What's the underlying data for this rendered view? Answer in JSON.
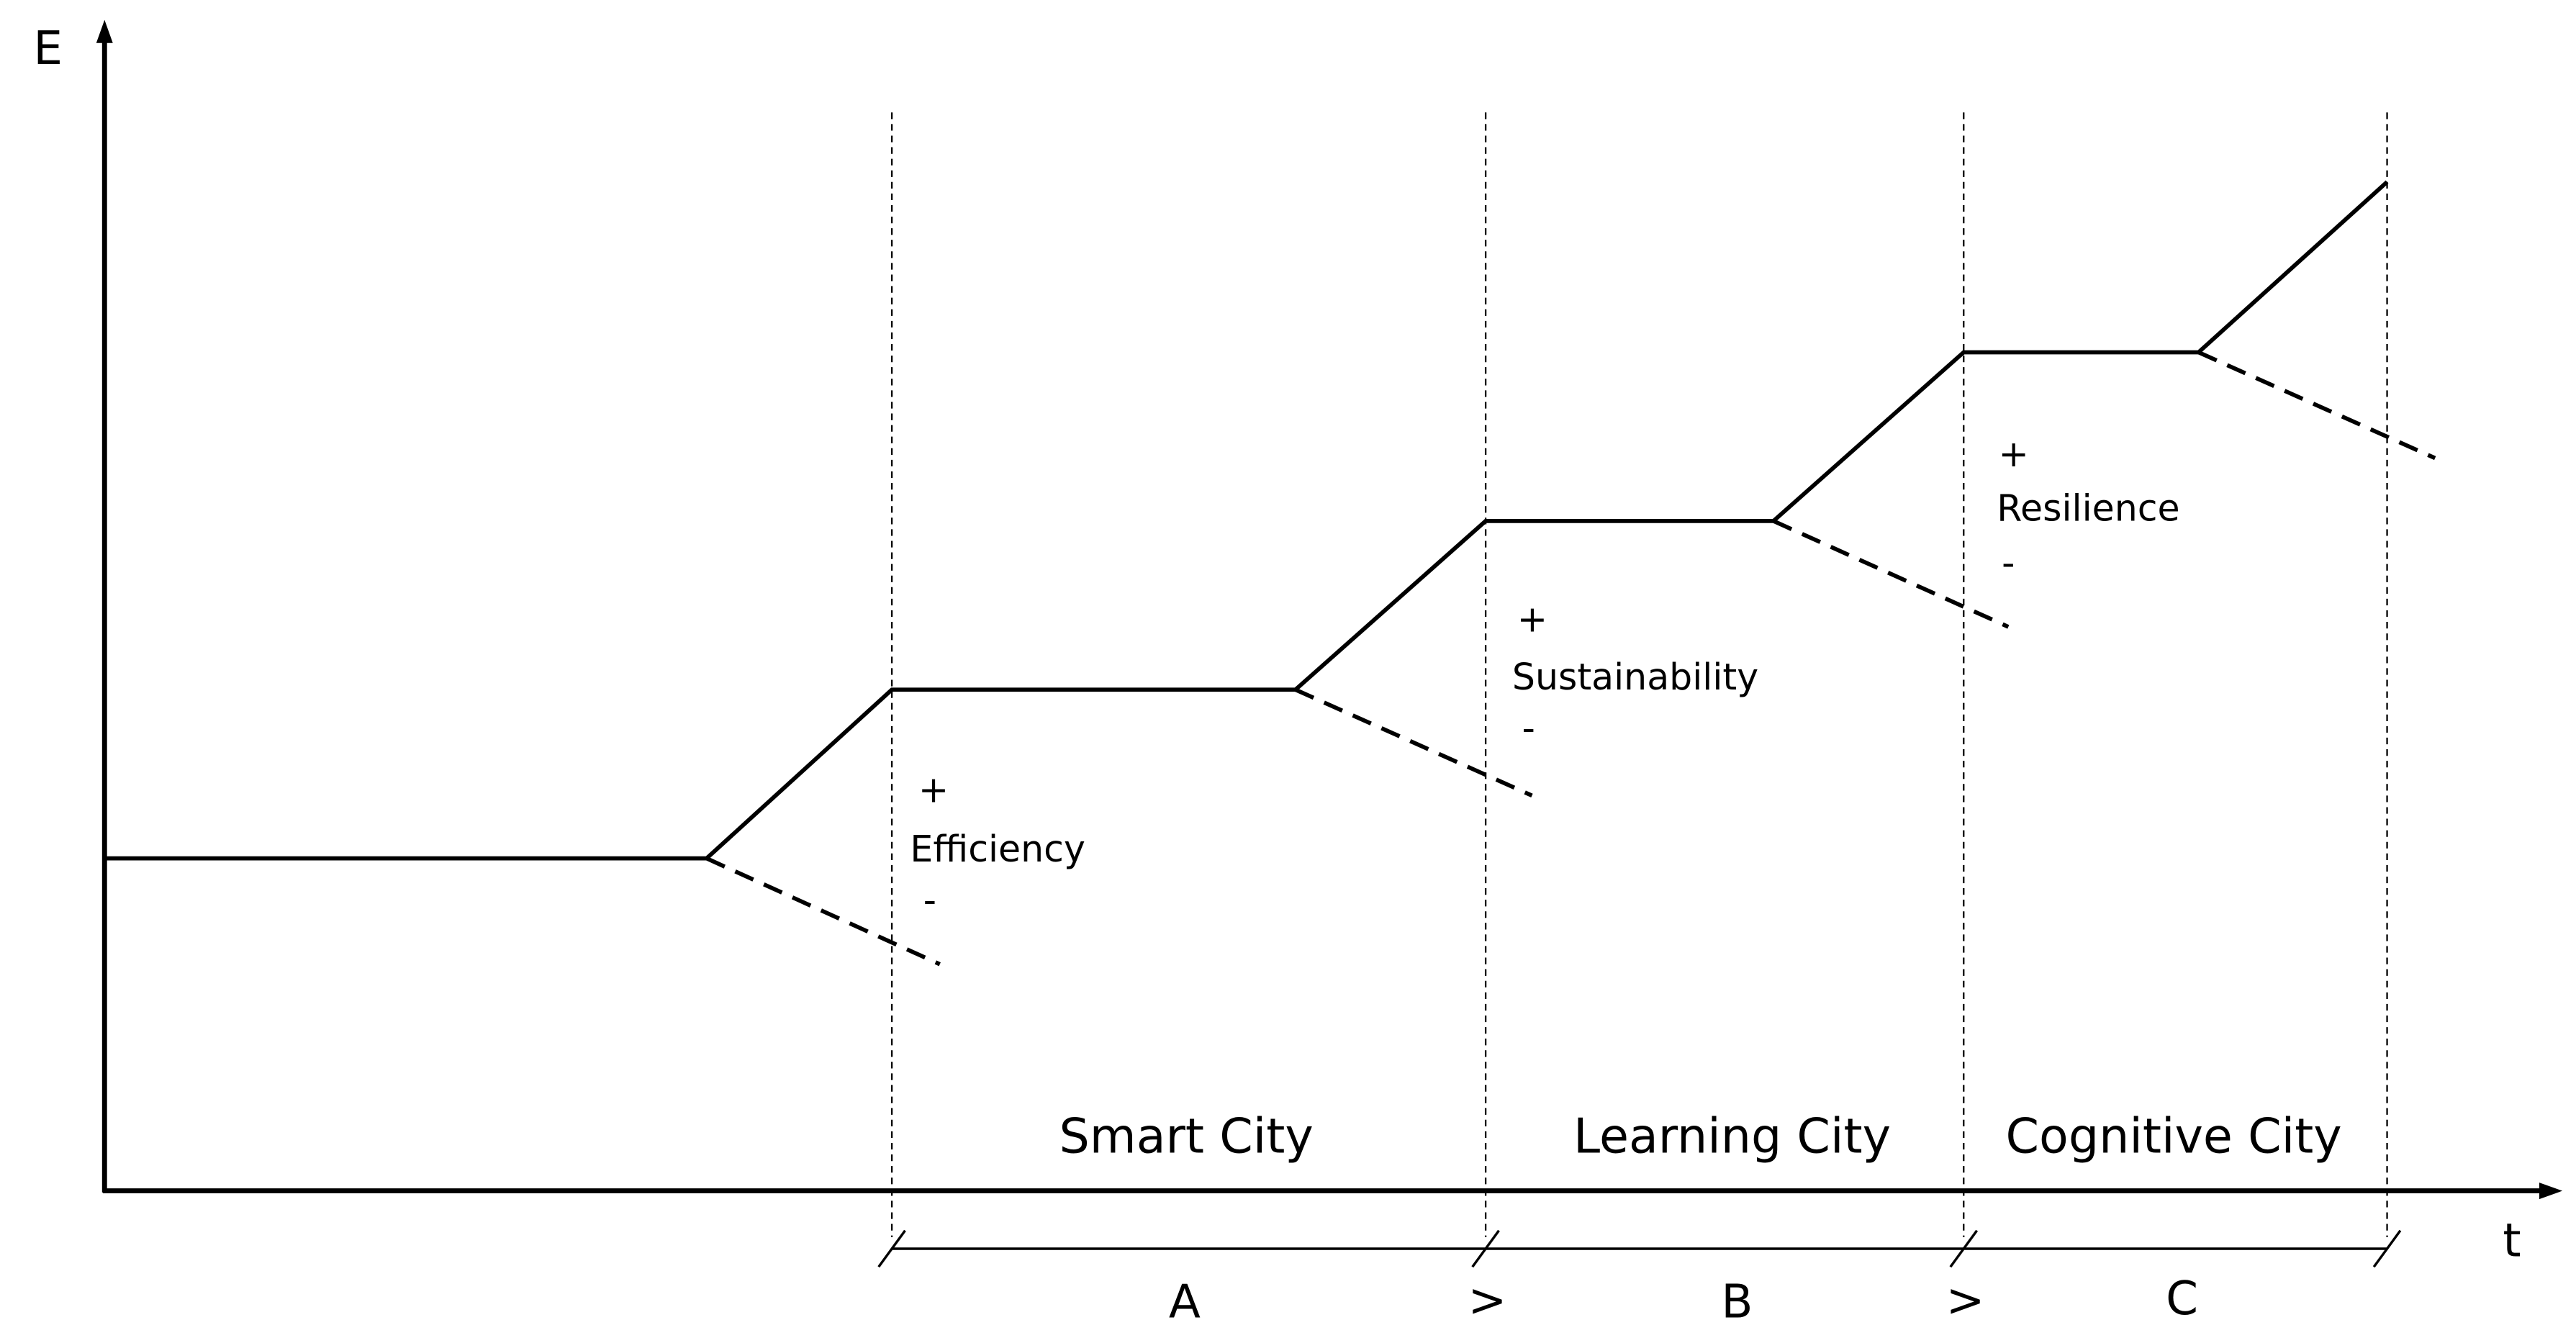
{
  "axes": {
    "y_label": "E",
    "x_label": "t"
  },
  "phases": [
    {
      "name": "Smart City",
      "letter": "A"
    },
    {
      "name": "Learning City",
      "letter": "B"
    },
    {
      "name": "Cognitive City",
      "letter": "C"
    }
  ],
  "separators": [
    ">",
    ">"
  ],
  "annotations": [
    {
      "plus": "+",
      "label": "Efficiency",
      "minus": "-"
    },
    {
      "plus": "+",
      "label": "Sustainability",
      "minus": "-"
    },
    {
      "plus": "+",
      "label": "Resilience",
      "minus": "-"
    }
  ]
}
